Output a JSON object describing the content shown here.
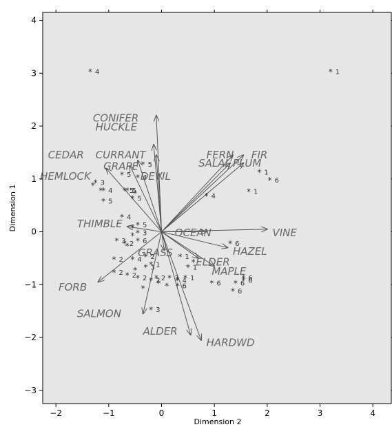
{
  "chart_data": {
    "type": "scatter",
    "subtype": "biplot",
    "xlabel": "Dimension 2",
    "ylabel": "Dimension 1",
    "xlim": [
      -2.25,
      4.35
    ],
    "ylim": [
      -3.25,
      4.15
    ],
    "xticks": [
      -2,
      -1,
      0,
      1,
      2,
      3,
      4
    ],
    "yticks": [
      -3,
      -2,
      -1,
      0,
      1,
      2,
      3,
      4
    ],
    "grid": false,
    "background": "#e6e6e6",
    "vectors": [
      {
        "label": "CONIFER",
        "x": -0.1,
        "y": 2.2,
        "lx": -1.3,
        "ly": 2.15
      },
      {
        "label": "HUCKLE",
        "x": -0.15,
        "y": 1.65,
        "lx": -1.25,
        "ly": 1.98
      },
      {
        "label": "CEDAR",
        "x": -0.45,
        "y": 1.35,
        "lx": -2.15,
        "ly": 1.45
      },
      {
        "label": "CURRANT",
        "x": -0.1,
        "y": 1.45,
        "lx": -1.25,
        "ly": 1.45
      },
      {
        "label": "GRAPE",
        "x": -0.6,
        "y": 1.25,
        "lx": -1.1,
        "ly": 1.24
      },
      {
        "label": "HEMLOCK",
        "x": -1.05,
        "y": 1.2,
        "lx": -2.3,
        "ly": 1.05
      },
      {
        "label": "DEVIL",
        "x": -0.05,
        "y": 1.1,
        "lx": -0.4,
        "ly": 1.05
      },
      {
        "label": "FERN",
        "x": 1.35,
        "y": 1.45,
        "lx": 0.85,
        "ly": 1.45
      },
      {
        "label": "SALAL",
        "x": 1.3,
        "y": 1.3,
        "lx": 0.7,
        "ly": 1.3
      },
      {
        "label": "FIR",
        "x": 1.55,
        "y": 1.45,
        "lx": 1.7,
        "ly": 1.45
      },
      {
        "label": "PLUM",
        "x": 1.55,
        "y": 1.3,
        "lx": 1.35,
        "ly": 1.3
      },
      {
        "label": "THIMBLE",
        "x": -0.65,
        "y": 0.1,
        "lx": -1.6,
        "ly": 0.15
      },
      {
        "label": "OCEAN",
        "x": 0.85,
        "y": 0.0,
        "lx": 0.25,
        "ly": -0.02
      },
      {
        "label": "VINE",
        "x": 2.0,
        "y": 0.05,
        "lx": 2.1,
        "ly": -0.02
      },
      {
        "label": "HAZEL",
        "x": 1.25,
        "y": -0.3,
        "lx": 1.35,
        "ly": -0.37
      },
      {
        "label": "GRASS",
        "x": 0.05,
        "y": -0.35,
        "lx": -0.45,
        "ly": -0.4
      },
      {
        "label": "ELDER",
        "x": 0.7,
        "y": -0.5,
        "lx": 0.65,
        "ly": -0.57
      },
      {
        "label": "MAPLE",
        "x": 1.0,
        "y": -0.65,
        "lx": 0.95,
        "ly": -0.75
      },
      {
        "label": "FORB",
        "x": -1.2,
        "y": -0.95,
        "lx": -1.95,
        "ly": -1.05
      },
      {
        "label": "SALMON",
        "x": -0.35,
        "y": -1.55,
        "lx": -1.6,
        "ly": -1.55
      },
      {
        "label": "ALDER",
        "x": 0.55,
        "y": -1.95,
        "lx": -0.35,
        "ly": -1.88
      },
      {
        "label": "HARDWD",
        "x": 0.75,
        "y": -2.05,
        "lx": 0.85,
        "ly": -2.1
      }
    ],
    "points": [
      {
        "x": -1.35,
        "y": 3.05,
        "group": "4"
      },
      {
        "x": 3.2,
        "y": 3.05,
        "group": "1"
      },
      {
        "x": -1.25,
        "y": 0.95,
        "group": "3"
      },
      {
        "x": -1.3,
        "y": 0.9,
        "group": ""
      },
      {
        "x": -1.15,
        "y": 0.8,
        "group": ""
      },
      {
        "x": -1.1,
        "y": 0.8,
        "group": "4"
      },
      {
        "x": -1.1,
        "y": 0.6,
        "group": "5"
      },
      {
        "x": -0.75,
        "y": 1.1,
        "group": "5"
      },
      {
        "x": -0.7,
        "y": 0.8,
        "group": "5"
      },
      {
        "x": -0.65,
        "y": 0.8,
        "group": "5"
      },
      {
        "x": -0.5,
        "y": 0.75,
        "group": ""
      },
      {
        "x": -0.55,
        "y": 0.65,
        "group": "5"
      },
      {
        "x": -0.35,
        "y": 1.3,
        "group": "5"
      },
      {
        "x": -0.45,
        "y": 1.05,
        "group": "4"
      },
      {
        "x": 0.85,
        "y": 0.7,
        "group": "4"
      },
      {
        "x": 1.85,
        "y": 1.15,
        "group": "1"
      },
      {
        "x": 2.05,
        "y": 1.0,
        "group": "6"
      },
      {
        "x": 1.65,
        "y": 0.78,
        "group": "1"
      },
      {
        "x": -0.75,
        "y": 0.3,
        "group": "4"
      },
      {
        "x": -0.55,
        "y": 0.1,
        "group": ""
      },
      {
        "x": -0.45,
        "y": 0.15,
        "group": "5"
      },
      {
        "x": -0.45,
        "y": 0.0,
        "group": "3"
      },
      {
        "x": -0.55,
        "y": -0.05,
        "group": ""
      },
      {
        "x": -0.85,
        "y": -0.15,
        "group": "3"
      },
      {
        "x": -0.7,
        "y": -0.2,
        "group": "2"
      },
      {
        "x": -0.65,
        "y": -0.25,
        "group": ""
      },
      {
        "x": -0.45,
        "y": -0.15,
        "group": "6"
      },
      {
        "x": -0.9,
        "y": -0.5,
        "group": "2"
      },
      {
        "x": -0.55,
        "y": -0.5,
        "group": "4"
      },
      {
        "x": -0.3,
        "y": -0.45,
        "group": "2"
      },
      {
        "x": -0.2,
        "y": -0.6,
        "group": "1"
      },
      {
        "x": -0.5,
        "y": -0.7,
        "group": ""
      },
      {
        "x": -0.3,
        "y": -0.65,
        "group": "3"
      },
      {
        "x": -0.9,
        "y": -0.75,
        "group": "2"
      },
      {
        "x": -0.65,
        "y": -0.8,
        "group": "2"
      },
      {
        "x": -0.45,
        "y": -0.85,
        "group": "2"
      },
      {
        "x": -0.35,
        "y": -1.05,
        "group": ""
      },
      {
        "x": -0.2,
        "y": -0.9,
        "group": "2"
      },
      {
        "x": -0.1,
        "y": -0.85,
        "group": "2"
      },
      {
        "x": -0.05,
        "y": -0.95,
        "group": ""
      },
      {
        "x": 0.15,
        "y": -0.85,
        "group": "3"
      },
      {
        "x": 0.3,
        "y": -0.9,
        "group": "4"
      },
      {
        "x": 0.45,
        "y": -0.85,
        "group": "1"
      },
      {
        "x": 0.3,
        "y": -1.0,
        "group": "6"
      },
      {
        "x": 0.1,
        "y": -1.0,
        "group": ""
      },
      {
        "x": 0.5,
        "y": -0.65,
        "group": "1"
      },
      {
        "x": 0.35,
        "y": -0.45,
        "group": "1"
      },
      {
        "x": 0.6,
        "y": -0.55,
        "group": ""
      },
      {
        "x": 0.95,
        "y": -0.95,
        "group": "6"
      },
      {
        "x": 1.4,
        "y": -0.95,
        "group": "6"
      },
      {
        "x": 1.35,
        "y": -1.1,
        "group": "6"
      },
      {
        "x": 1.55,
        "y": -0.9,
        "group": "6"
      },
      {
        "x": 1.55,
        "y": -0.85,
        "group": "6"
      },
      {
        "x": 1.3,
        "y": -0.2,
        "group": "6"
      },
      {
        "x": -0.2,
        "y": -1.45,
        "group": "3"
      }
    ]
  }
}
